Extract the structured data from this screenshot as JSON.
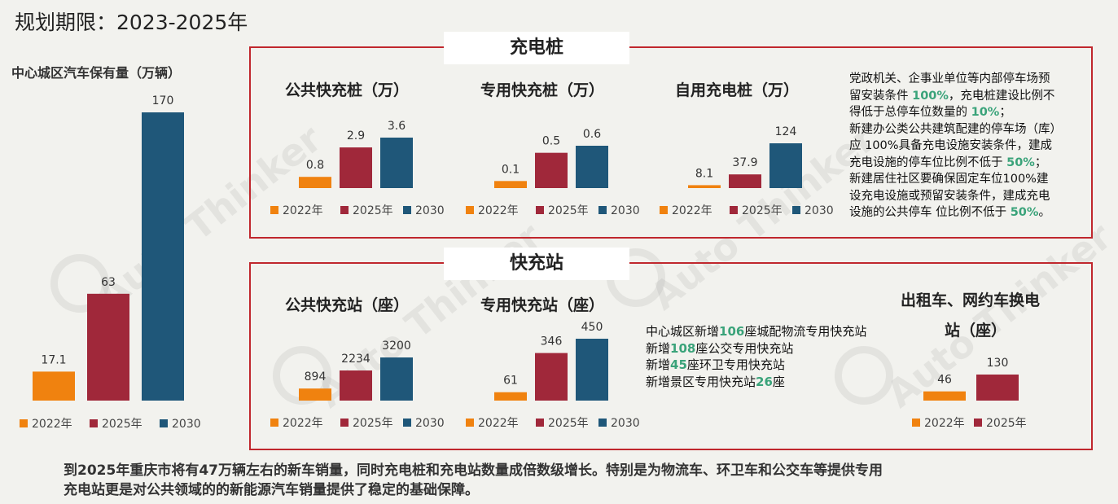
{
  "page": {
    "title": "规划期限：2023-2025年",
    "footer_line1": "到2025年重庆市将有47万辆左右的新车销量，同时充电桩和充电站数量成倍数级增长。特别是为物流车、环卫车和公交车等提供专用",
    "footer_line2": "充电站更是对公共领域的的新能源汽车销量提供了稳定的基础保障。",
    "watermark": "Auto Thinker"
  },
  "colors": {
    "y2022": "#f0820f",
    "y2025": "#a0283a",
    "y2030": "#1f5779",
    "box_border": "#c0272d",
    "highlight": "#3aa37a"
  },
  "sections": {
    "charging_piles": {
      "label": "充电桩"
    },
    "fast_stations": {
      "label": "快充站"
    }
  },
  "notes": {
    "piles": [
      {
        "text": "党政机关、企事业单位等内部停车场预"
      },
      {
        "text": "留安装条件 ",
        "hl": "100%",
        "tail": "，充电桩建设比例不"
      },
      {
        "text": "得低于总停车位数量的 ",
        "hl": "10%",
        "tail": "；"
      },
      {
        "text": "新建办公类公共建筑配建的停车场（库）"
      },
      {
        "text": "应 100%具备充电设施安装条件，建成"
      },
      {
        "text": "充电设施的停车位比例不低于 ",
        "hl": "50%",
        "tail": "；"
      },
      {
        "text": "新建居住社区要确保固定车位100%建"
      },
      {
        "text": "设充电设施或预留安装条件，建成充电"
      },
      {
        "text": "设施的公共停车 位比例不低于 ",
        "hl": "50%",
        "tail": "。"
      }
    ],
    "stations": [
      {
        "text": "中心城区新增",
        "hl": "106",
        "tail": "座城配物流专用快充站"
      },
      {
        "text": "新增",
        "hl": "108",
        "tail": "座公交专用快充站"
      },
      {
        "text": "新增",
        "hl": "45",
        "tail": "座环卫专用快充站"
      },
      {
        "text": "新增景区专用快充站",
        "hl": "26",
        "tail": "座"
      }
    ]
  },
  "chart_data": [
    {
      "id": "vehicles",
      "type": "bar",
      "title": "中心城区汽车保有量（万辆）",
      "categories": [
        "2022年",
        "2025年",
        "2030"
      ],
      "values": [
        17.1,
        63,
        170
      ],
      "labels": [
        "17.1",
        "63",
        "170"
      ]
    },
    {
      "id": "public_piles",
      "type": "bar",
      "title": "公共快充桩（万）",
      "categories": [
        "2022年",
        "2025年",
        "2030"
      ],
      "values": [
        0.8,
        2.9,
        3.6
      ],
      "labels": [
        "0.8",
        "2.9",
        "3.6"
      ]
    },
    {
      "id": "dedicated_piles",
      "type": "bar",
      "title": "专用快充桩（万）",
      "categories": [
        "2022年",
        "2025年",
        "2030"
      ],
      "values": [
        0.1,
        0.5,
        0.6
      ],
      "labels": [
        "0.1",
        "0.5",
        "0.6"
      ]
    },
    {
      "id": "private_piles",
      "type": "bar",
      "title": "自用充电桩（万）",
      "categories": [
        "2022年",
        "2025年",
        "2030"
      ],
      "values": [
        8.1,
        37.9,
        124
      ],
      "labels": [
        "8.1",
        "37.9",
        "124"
      ]
    },
    {
      "id": "public_stations",
      "type": "bar",
      "title": "公共快充站（座）",
      "categories": [
        "2022年",
        "2025年",
        "2030"
      ],
      "values": [
        894,
        2234,
        3200
      ],
      "labels": [
        "894",
        "2234",
        "3200"
      ]
    },
    {
      "id": "dedicated_stations",
      "type": "bar",
      "title": "专用快充站（座）",
      "categories": [
        "2022年",
        "2025年",
        "2030"
      ],
      "values": [
        61,
        346,
        450
      ],
      "labels": [
        "61",
        "346",
        "450"
      ]
    },
    {
      "id": "swap_stations",
      "type": "bar",
      "title": "出租车、网约车换电站（座）",
      "title_lines": [
        "出租车、网约车换电",
        "站（座）"
      ],
      "categories": [
        "2022年",
        "2025年"
      ],
      "values": [
        46,
        130
      ],
      "labels": [
        "46",
        "130"
      ]
    }
  ]
}
